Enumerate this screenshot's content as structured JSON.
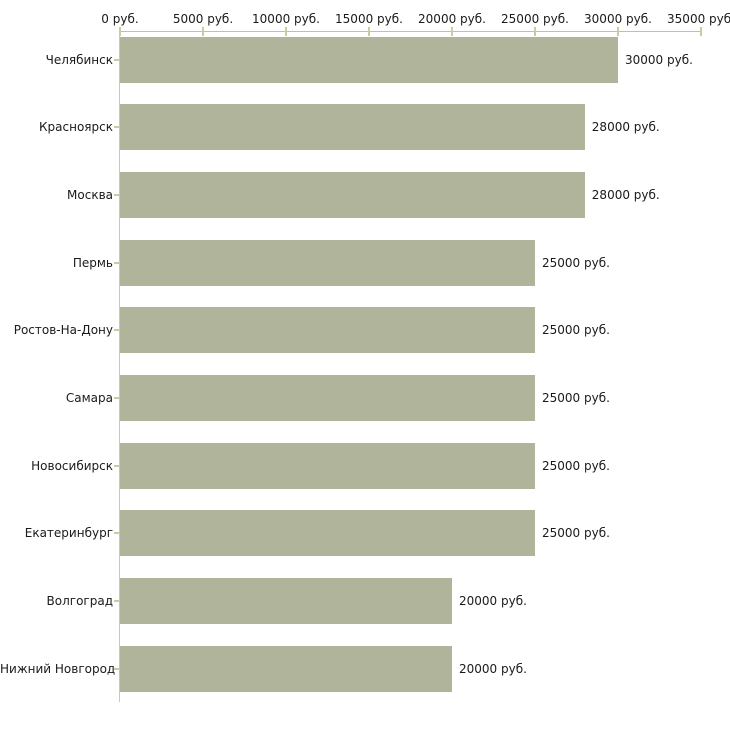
{
  "chart_data": {
    "type": "bar",
    "orientation": "horizontal",
    "title": "",
    "xlabel": "",
    "ylabel": "",
    "unit_suffix": " руб.",
    "categories": [
      "Челябинск",
      "Красноярск",
      "Москва",
      "Пермь",
      "Ростов-На-Дону",
      "Самара",
      "Новосибирск",
      "Екатеринбург",
      "Волгоград",
      "Нижний Новгород"
    ],
    "values": [
      30000,
      28000,
      28000,
      25000,
      25000,
      25000,
      25000,
      25000,
      20000,
      20000
    ],
    "value_labels": [
      "30000 руб.",
      "28000 руб.",
      "28000 руб.",
      "25000 руб.",
      "25000 руб.",
      "25000 руб.",
      "25000 руб.",
      "25000 руб.",
      "20000 руб.",
      "20000 руб."
    ],
    "x_ticks": [
      0,
      5000,
      10000,
      15000,
      20000,
      25000,
      30000,
      35000
    ],
    "x_tick_labels": [
      "0 руб.",
      "5000 руб.",
      "10000 руб.",
      "15000 руб.",
      "20000 руб.",
      "25000 руб.",
      "30000 руб.",
      "35000 руб."
    ],
    "xlim": [
      0,
      35000
    ],
    "axis_position": "top",
    "grid": false,
    "legend": false,
    "colors": {
      "bar": "#afb49a",
      "axis_line": "#bdbdbd",
      "tick_mark": "#cfc9a0",
      "text": "#1a1a1a",
      "background": "#ffffff"
    }
  }
}
